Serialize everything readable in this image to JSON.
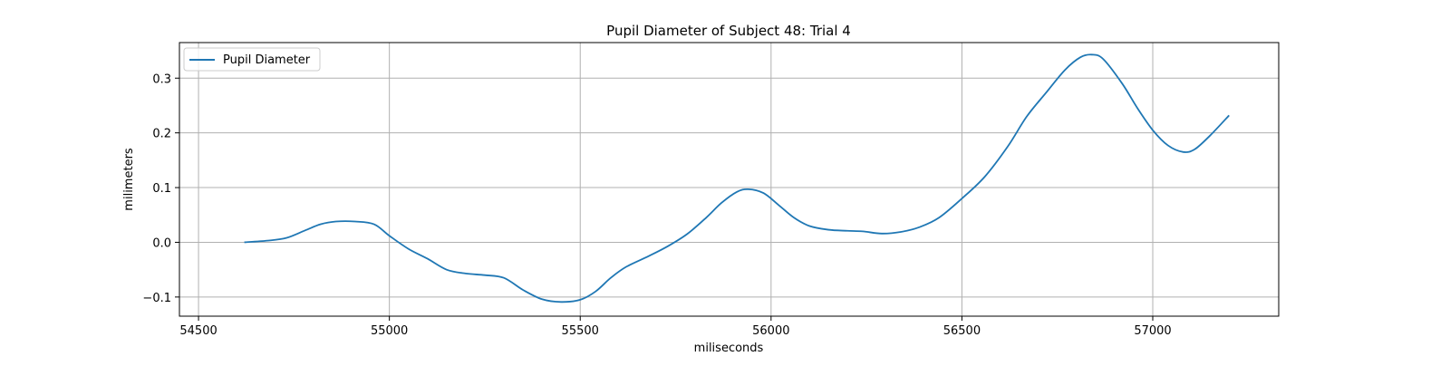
{
  "chart_data": {
    "type": "line",
    "title": "Pupil Diameter of Subject 48: Trial 4",
    "xlabel": "miliseconds",
    "ylabel": "milimeters",
    "xlim": [
      54450,
      57330
    ],
    "ylim": [
      -0.135,
      0.365
    ],
    "xticks": [
      54500,
      55000,
      55500,
      56000,
      56500,
      57000
    ],
    "yticks": [
      -0.1,
      0.0,
      0.1,
      0.2,
      0.3
    ],
    "ytick_labels": [
      "−0.1",
      "0.0",
      "0.1",
      "0.2",
      "0.3"
    ],
    "grid": true,
    "legend_position": "upper-left",
    "series": [
      {
        "name": "Pupil Diameter",
        "color": "#1f77b4",
        "x": [
          54620,
          54680,
          54730,
          54780,
          54820,
          54860,
          54910,
          54960,
          55000,
          55050,
          55100,
          55150,
          55200,
          55250,
          55300,
          55350,
          55400,
          55450,
          55500,
          55540,
          55580,
          55620,
          55680,
          55730,
          55780,
          55830,
          55870,
          55910,
          55940,
          55980,
          56020,
          56060,
          56100,
          56150,
          56200,
          56240,
          56290,
          56340,
          56390,
          56440,
          56500,
          56560,
          56620,
          56670,
          56720,
          56770,
          56810,
          56840,
          56870,
          56920,
          56960,
          57000,
          57040,
          57080,
          57110,
          57150,
          57200
        ],
        "y": [
          0.0,
          0.003,
          0.008,
          0.022,
          0.033,
          0.038,
          0.038,
          0.033,
          0.012,
          -0.012,
          -0.03,
          -0.05,
          -0.057,
          -0.06,
          -0.065,
          -0.087,
          -0.104,
          -0.109,
          -0.105,
          -0.09,
          -0.065,
          -0.045,
          -0.025,
          -0.007,
          0.015,
          0.045,
          0.072,
          0.092,
          0.097,
          0.09,
          0.068,
          0.045,
          0.03,
          0.023,
          0.021,
          0.02,
          0.016,
          0.019,
          0.028,
          0.045,
          0.08,
          0.12,
          0.175,
          0.23,
          0.273,
          0.315,
          0.338,
          0.343,
          0.335,
          0.29,
          0.245,
          0.205,
          0.177,
          0.165,
          0.17,
          0.195,
          0.232
        ]
      }
    ]
  }
}
